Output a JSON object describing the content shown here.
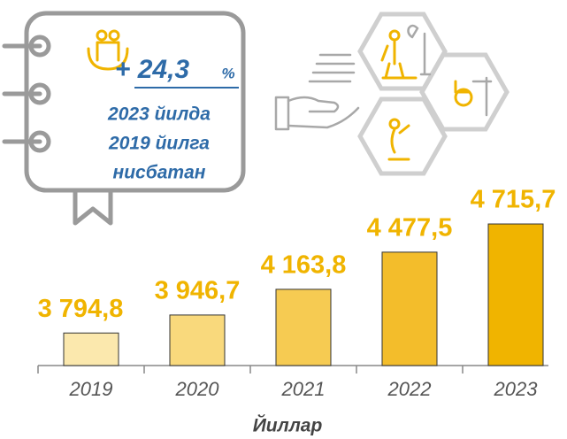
{
  "chart_data": {
    "type": "bar",
    "categories": [
      "2019",
      "2020",
      "2021",
      "2022",
      "2023"
    ],
    "values": [
      3794.8,
      3946.7,
      4163.8,
      4477.5,
      4715.7
    ],
    "value_labels": [
      "3 794,8",
      "3 946,7",
      "4 163,8",
      "4 477,5",
      "4 715,7"
    ],
    "colors": [
      "#fbe8ad",
      "#f9d97c",
      "#f6cb52",
      "#f3bd2b",
      "#f0b400"
    ],
    "ylim": [
      3520,
      5000
    ],
    "x_label": "Йиллар",
    "annotation": {
      "change": "+ 24,3",
      "unit": "%",
      "lines": [
        "2023 йилда",
        "2019 йилга",
        "нисбатан"
      ]
    }
  }
}
